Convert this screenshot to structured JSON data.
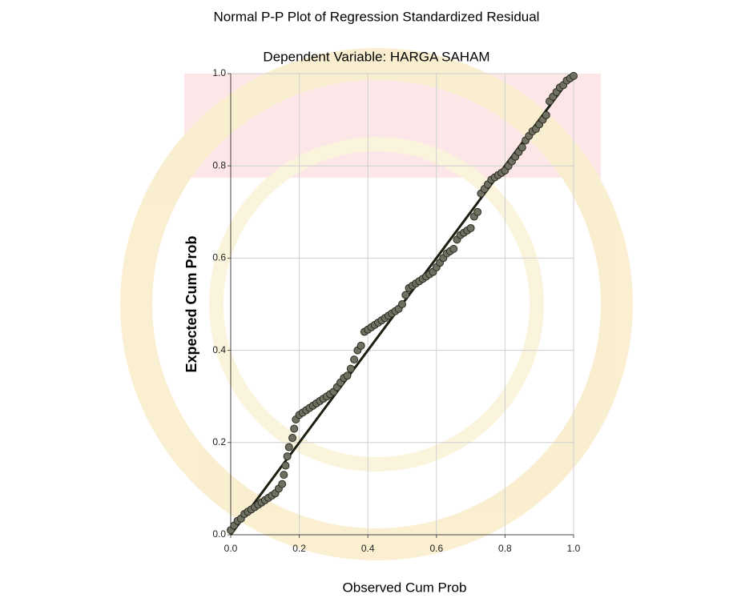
{
  "chart_data": {
    "type": "scatter",
    "title": "Normal P-P Plot of Regression Standardized Residual",
    "subtitle": "Dependent Variable: HARGA SAHAM",
    "x_label": "Observed Cum Prob",
    "y_label": "Expected Cum Prob",
    "x": [
      0.0,
      0.01,
      0.02,
      0.03,
      0.04,
      0.05,
      0.06,
      0.07,
      0.08,
      0.09,
      0.1,
      0.11,
      0.12,
      0.13,
      0.14,
      0.15,
      0.155,
      0.16,
      0.165,
      0.17,
      0.18,
      0.185,
      0.19,
      0.2,
      0.21,
      0.22,
      0.23,
      0.24,
      0.25,
      0.26,
      0.27,
      0.28,
      0.29,
      0.3,
      0.31,
      0.32,
      0.33,
      0.34,
      0.35,
      0.36,
      0.37,
      0.38,
      0.39,
      0.4,
      0.41,
      0.42,
      0.43,
      0.44,
      0.45,
      0.46,
      0.47,
      0.48,
      0.49,
      0.5,
      0.51,
      0.52,
      0.53,
      0.54,
      0.55,
      0.56,
      0.57,
      0.58,
      0.59,
      0.6,
      0.61,
      0.62,
      0.63,
      0.64,
      0.65,
      0.66,
      0.67,
      0.68,
      0.69,
      0.7,
      0.71,
      0.72,
      0.73,
      0.74,
      0.75,
      0.76,
      0.77,
      0.78,
      0.79,
      0.8,
      0.81,
      0.82,
      0.83,
      0.84,
      0.85,
      0.86,
      0.87,
      0.88,
      0.89,
      0.9,
      0.91,
      0.92,
      0.93,
      0.94,
      0.95,
      0.96,
      0.97,
      0.98,
      0.99,
      1.0
    ],
    "series": [
      {
        "color": "#707062",
        "values": [
          0.01,
          0.02,
          0.03,
          0.035,
          0.045,
          0.05,
          0.055,
          0.06,
          0.065,
          0.07,
          0.075,
          0.08,
          0.085,
          0.09,
          0.1,
          0.11,
          0.13,
          0.15,
          0.17,
          0.19,
          0.21,
          0.23,
          0.25,
          0.26,
          0.265,
          0.27,
          0.275,
          0.28,
          0.285,
          0.29,
          0.295,
          0.3,
          0.305,
          0.31,
          0.32,
          0.33,
          0.34,
          0.345,
          0.36,
          0.38,
          0.4,
          0.41,
          0.44,
          0.445,
          0.45,
          0.455,
          0.46,
          0.465,
          0.47,
          0.475,
          0.48,
          0.485,
          0.49,
          0.5,
          0.52,
          0.535,
          0.54,
          0.545,
          0.55,
          0.555,
          0.56,
          0.565,
          0.57,
          0.58,
          0.59,
          0.6,
          0.61,
          0.615,
          0.62,
          0.64,
          0.65,
          0.655,
          0.66,
          0.665,
          0.69,
          0.7,
          0.74,
          0.75,
          0.76,
          0.77,
          0.775,
          0.78,
          0.785,
          0.79,
          0.8,
          0.81,
          0.82,
          0.83,
          0.84,
          0.855,
          0.865,
          0.875,
          0.88,
          0.89,
          0.9,
          0.91,
          0.94,
          0.95,
          0.96,
          0.97,
          0.975,
          0.985,
          0.99,
          0.995
        ]
      }
    ],
    "xlim": [
      0,
      1
    ],
    "ylim": [
      0,
      1
    ],
    "xticks": [
      {
        "value": 0,
        "label": "0.0"
      },
      0.2,
      0.4,
      0.6,
      0.8,
      {
        "value": 1,
        "label": "1.0"
      }
    ],
    "yticks": [
      {
        "value": 0,
        "label": "0.0"
      },
      0.2,
      0.4,
      0.6,
      0.8,
      {
        "value": 1,
        "label": "1.0"
      }
    ],
    "grid": true
  }
}
